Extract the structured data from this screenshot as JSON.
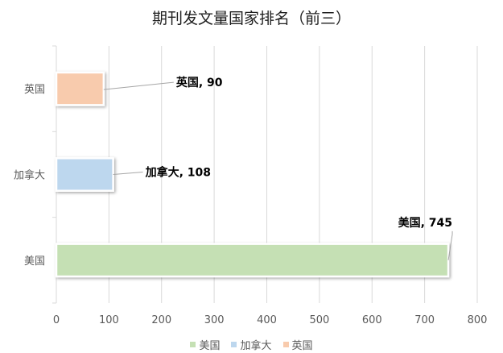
{
  "chart_data": {
    "type": "bar",
    "orientation": "horizontal",
    "title": "期刊发文量国家排名（前三）",
    "categories": [
      "美国",
      "加拿大",
      "英国"
    ],
    "series": [
      {
        "name": "美国",
        "values": [
          745,
          null,
          null
        ],
        "color": "#c5e0b4"
      },
      {
        "name": "加拿大",
        "values": [
          null,
          108,
          null
        ],
        "color": "#bdd7ee"
      },
      {
        "name": "英国",
        "values": [
          null,
          null,
          90
        ],
        "color": "#f8cbad"
      }
    ],
    "data_labels": [
      "美国, 745",
      "加拿大, 108",
      "英国, 90"
    ],
    "xlim": [
      0,
      800
    ],
    "x_ticks": [
      0,
      100,
      200,
      300,
      400,
      500,
      600,
      700,
      800
    ],
    "grid": "vertical",
    "legend": "bottom"
  }
}
